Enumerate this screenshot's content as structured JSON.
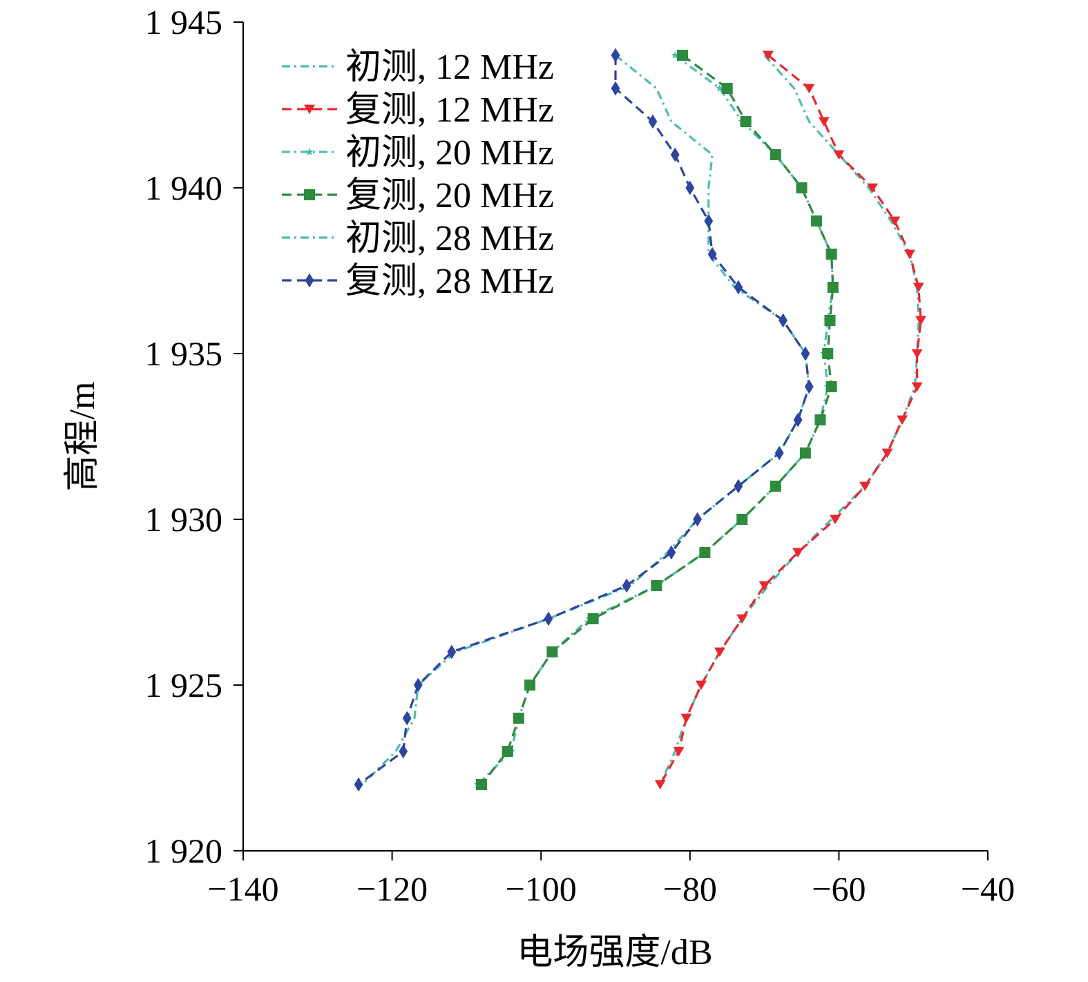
{
  "chart_data": {
    "type": "line",
    "title": "",
    "xlabel": "电场强度/dB",
    "ylabel": "高程/m",
    "xlim": [
      -140,
      -40
    ],
    "ylim": [
      1920,
      1945
    ],
    "x_ticks": [
      -140,
      -120,
      -100,
      -80,
      -60,
      -40
    ],
    "y_ticks": [
      1920,
      1925,
      1930,
      1935,
      1940,
      1945
    ],
    "x_tick_labels": [
      "−140",
      "−120",
      "−100",
      "−80",
      "−60",
      "−40"
    ],
    "y_tick_labels": [
      "1 920",
      "1 925",
      "1 930",
      "1 935",
      "1 940",
      "1 945"
    ],
    "grid": false,
    "legend_position": "top-left",
    "y": [
      1944,
      1943,
      1942,
      1941,
      1940,
      1939,
      1938,
      1937,
      1936,
      1935,
      1934,
      1933,
      1932,
      1931,
      1930,
      1929,
      1928,
      1927,
      1926,
      1925,
      1924,
      1923,
      1922
    ],
    "series": [
      {
        "name": "初测, 12 MHz",
        "color": "#4dbdb0",
        "dash": "dashdot",
        "marker": "none",
        "values": [
          -70,
          -66,
          -64,
          -60,
          -56,
          -53,
          -50.5,
          -49.5,
          -49.3,
          -49.5,
          -49.8,
          -51.5,
          -53.5,
          -56.5,
          -61,
          -65.5,
          -69.5,
          -73,
          -76,
          -78.5,
          -80.5,
          -82,
          -84
        ]
      },
      {
        "name": "复测, 12 MHz",
        "color": "#e8272f",
        "dash": "dashed",
        "marker": "triangle-down",
        "values": [
          -69.5,
          -64,
          -62,
          -60,
          -55.5,
          -52.5,
          -50.5,
          -49.3,
          -49,
          -49.5,
          -49.5,
          -51.5,
          -53.5,
          -56.5,
          -60.5,
          -65.5,
          -70,
          -73,
          -76,
          -78.5,
          -80.5,
          -81.5,
          -84
        ]
      },
      {
        "name": "初测, 20 MHz",
        "color": "#4dbdb0",
        "dash": "dashdot",
        "marker": "star",
        "values": [
          -82,
          -76,
          -73,
          -68.5,
          -65,
          -63,
          -61,
          -60.8,
          -61.5,
          -62,
          -61.5,
          -62.5,
          -64.5,
          -68.5,
          -73,
          -78,
          -84.5,
          -93.5,
          -98.5,
          -101.5,
          -103,
          -104,
          -108.5
        ]
      },
      {
        "name": "复测, 20 MHz",
        "color": "#2e8b3e",
        "dash": "dashed",
        "marker": "square",
        "values": [
          -81,
          -75,
          -72.5,
          -68.5,
          -65,
          -63,
          -61,
          -60.8,
          -61.2,
          -61.5,
          -61,
          -62.5,
          -64.5,
          -68.5,
          -73,
          -78,
          -84.5,
          -93,
          -98.5,
          -101.5,
          -103,
          -104.5,
          -108
        ]
      },
      {
        "name": "初测, 28 MHz",
        "color": "#4dbdb0",
        "dash": "dashdot",
        "marker": "none",
        "values": [
          -90,
          -84.5,
          -82.5,
          -77,
          -77.5,
          -77.5,
          -77.5,
          -74,
          -67.5,
          -64.5,
          -64,
          -65.5,
          -68,
          -73.5,
          -79,
          -83,
          -88,
          -99,
          -111.5,
          -116.5,
          -117,
          -119.5,
          -124
        ]
      },
      {
        "name": "复测, 28 MHz",
        "color": "#2b45a0",
        "dash": "dashed",
        "marker": "diamond",
        "values": [
          -90,
          -90,
          -85,
          -82,
          -80,
          -77.5,
          -77,
          -73.5,
          -67.5,
          -64.5,
          -64,
          -65.5,
          -68,
          -73.5,
          -79,
          -82.5,
          -88.5,
          -99,
          -112,
          -116.5,
          -118,
          -118.5,
          -124.5
        ]
      }
    ]
  }
}
